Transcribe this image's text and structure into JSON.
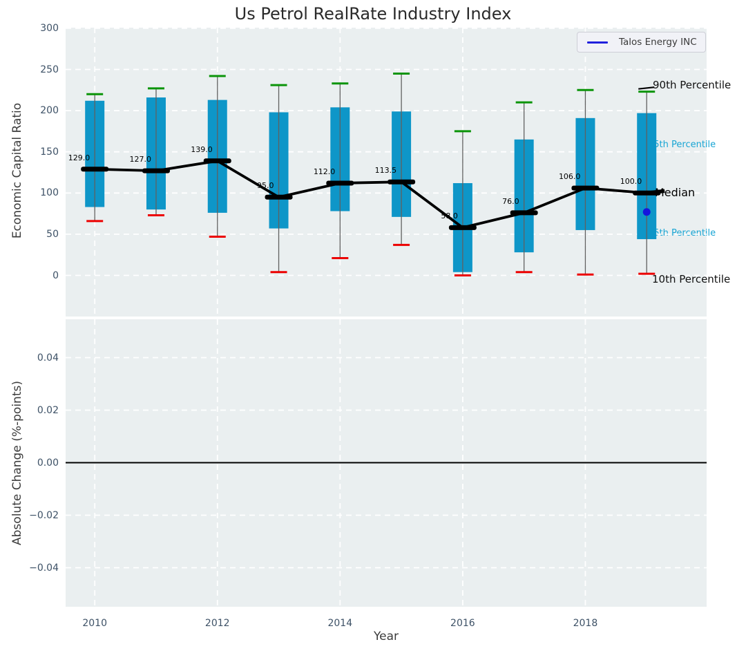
{
  "title": "Us Petrol RealRate Industry Index",
  "legend": {
    "label": "Talos Energy INC"
  },
  "annotations": {
    "p90": "90th Percentile",
    "p75": "75th Percentile",
    "median": "Median",
    "p25": "25th Percentile",
    "p10": "10th Percentile"
  },
  "colors": {
    "box": "#0e96c8",
    "cap_high": "#0a9408",
    "cap_low": "#ec0000",
    "whisker": "#606060",
    "median_line": "#000000",
    "talos_blue": "#1515dd",
    "axes_bg": "#eaeff0",
    "grid": "#ffffff",
    "tick_text": "#3d5166",
    "annotation_cyan": "#18a5d4"
  },
  "chart_data": [
    {
      "type": "boxplot",
      "title": "Us Petrol RealRate Industry Index",
      "ylabel": "Economic Capital Ratio",
      "ylim": [
        -48,
        302
      ],
      "yticks": [
        0,
        50,
        100,
        150,
        200,
        250,
        300
      ],
      "grid": true,
      "x": [
        2010,
        2011,
        2012,
        2013,
        2014,
        2015,
        2016,
        2017,
        2018,
        2019
      ],
      "series": [
        {
          "name": "10th Percentile",
          "values": [
            66,
            73,
            47,
            4,
            21,
            37,
            0,
            4,
            1,
            2
          ]
        },
        {
          "name": "25th Percentile",
          "values": [
            83,
            80,
            76,
            57,
            78,
            71,
            4,
            28,
            55,
            44
          ]
        },
        {
          "name": "Median",
          "values": [
            129,
            127,
            139,
            95,
            112,
            113.5,
            58,
            76,
            106,
            100
          ]
        },
        {
          "name": "75th Percentile",
          "values": [
            212,
            216,
            213,
            198,
            204,
            199,
            112,
            165,
            191,
            197
          ]
        },
        {
          "name": "90th Percentile",
          "values": [
            220,
            227,
            242,
            231,
            233,
            245,
            175,
            210,
            225,
            223
          ]
        }
      ],
      "median_labels": [
        "129.0",
        "127.0",
        "139.0",
        "95.0",
        "112.0",
        "113.5",
        "58.0",
        "76.0",
        "106.0",
        "100.0"
      ],
      "talos_point": {
        "x": 2019,
        "y": 77
      },
      "legend_entries": [
        "Talos Energy INC"
      ],
      "legend_position": "upper right"
    },
    {
      "type": "line",
      "ylabel": "Absolute Change (%-points)",
      "xlabel": "Year",
      "ylim": [
        -0.055,
        0.055
      ],
      "yticks": [
        "0.04",
        "0.02",
        "0.00",
        "−0.02",
        "−0.04"
      ],
      "ytick_values": [
        0.04,
        0.02,
        0.0,
        -0.02,
        -0.04
      ],
      "xticks": [
        2010,
        2012,
        2014,
        2016,
        2018
      ],
      "zero_line": 0.0,
      "values": []
    }
  ]
}
